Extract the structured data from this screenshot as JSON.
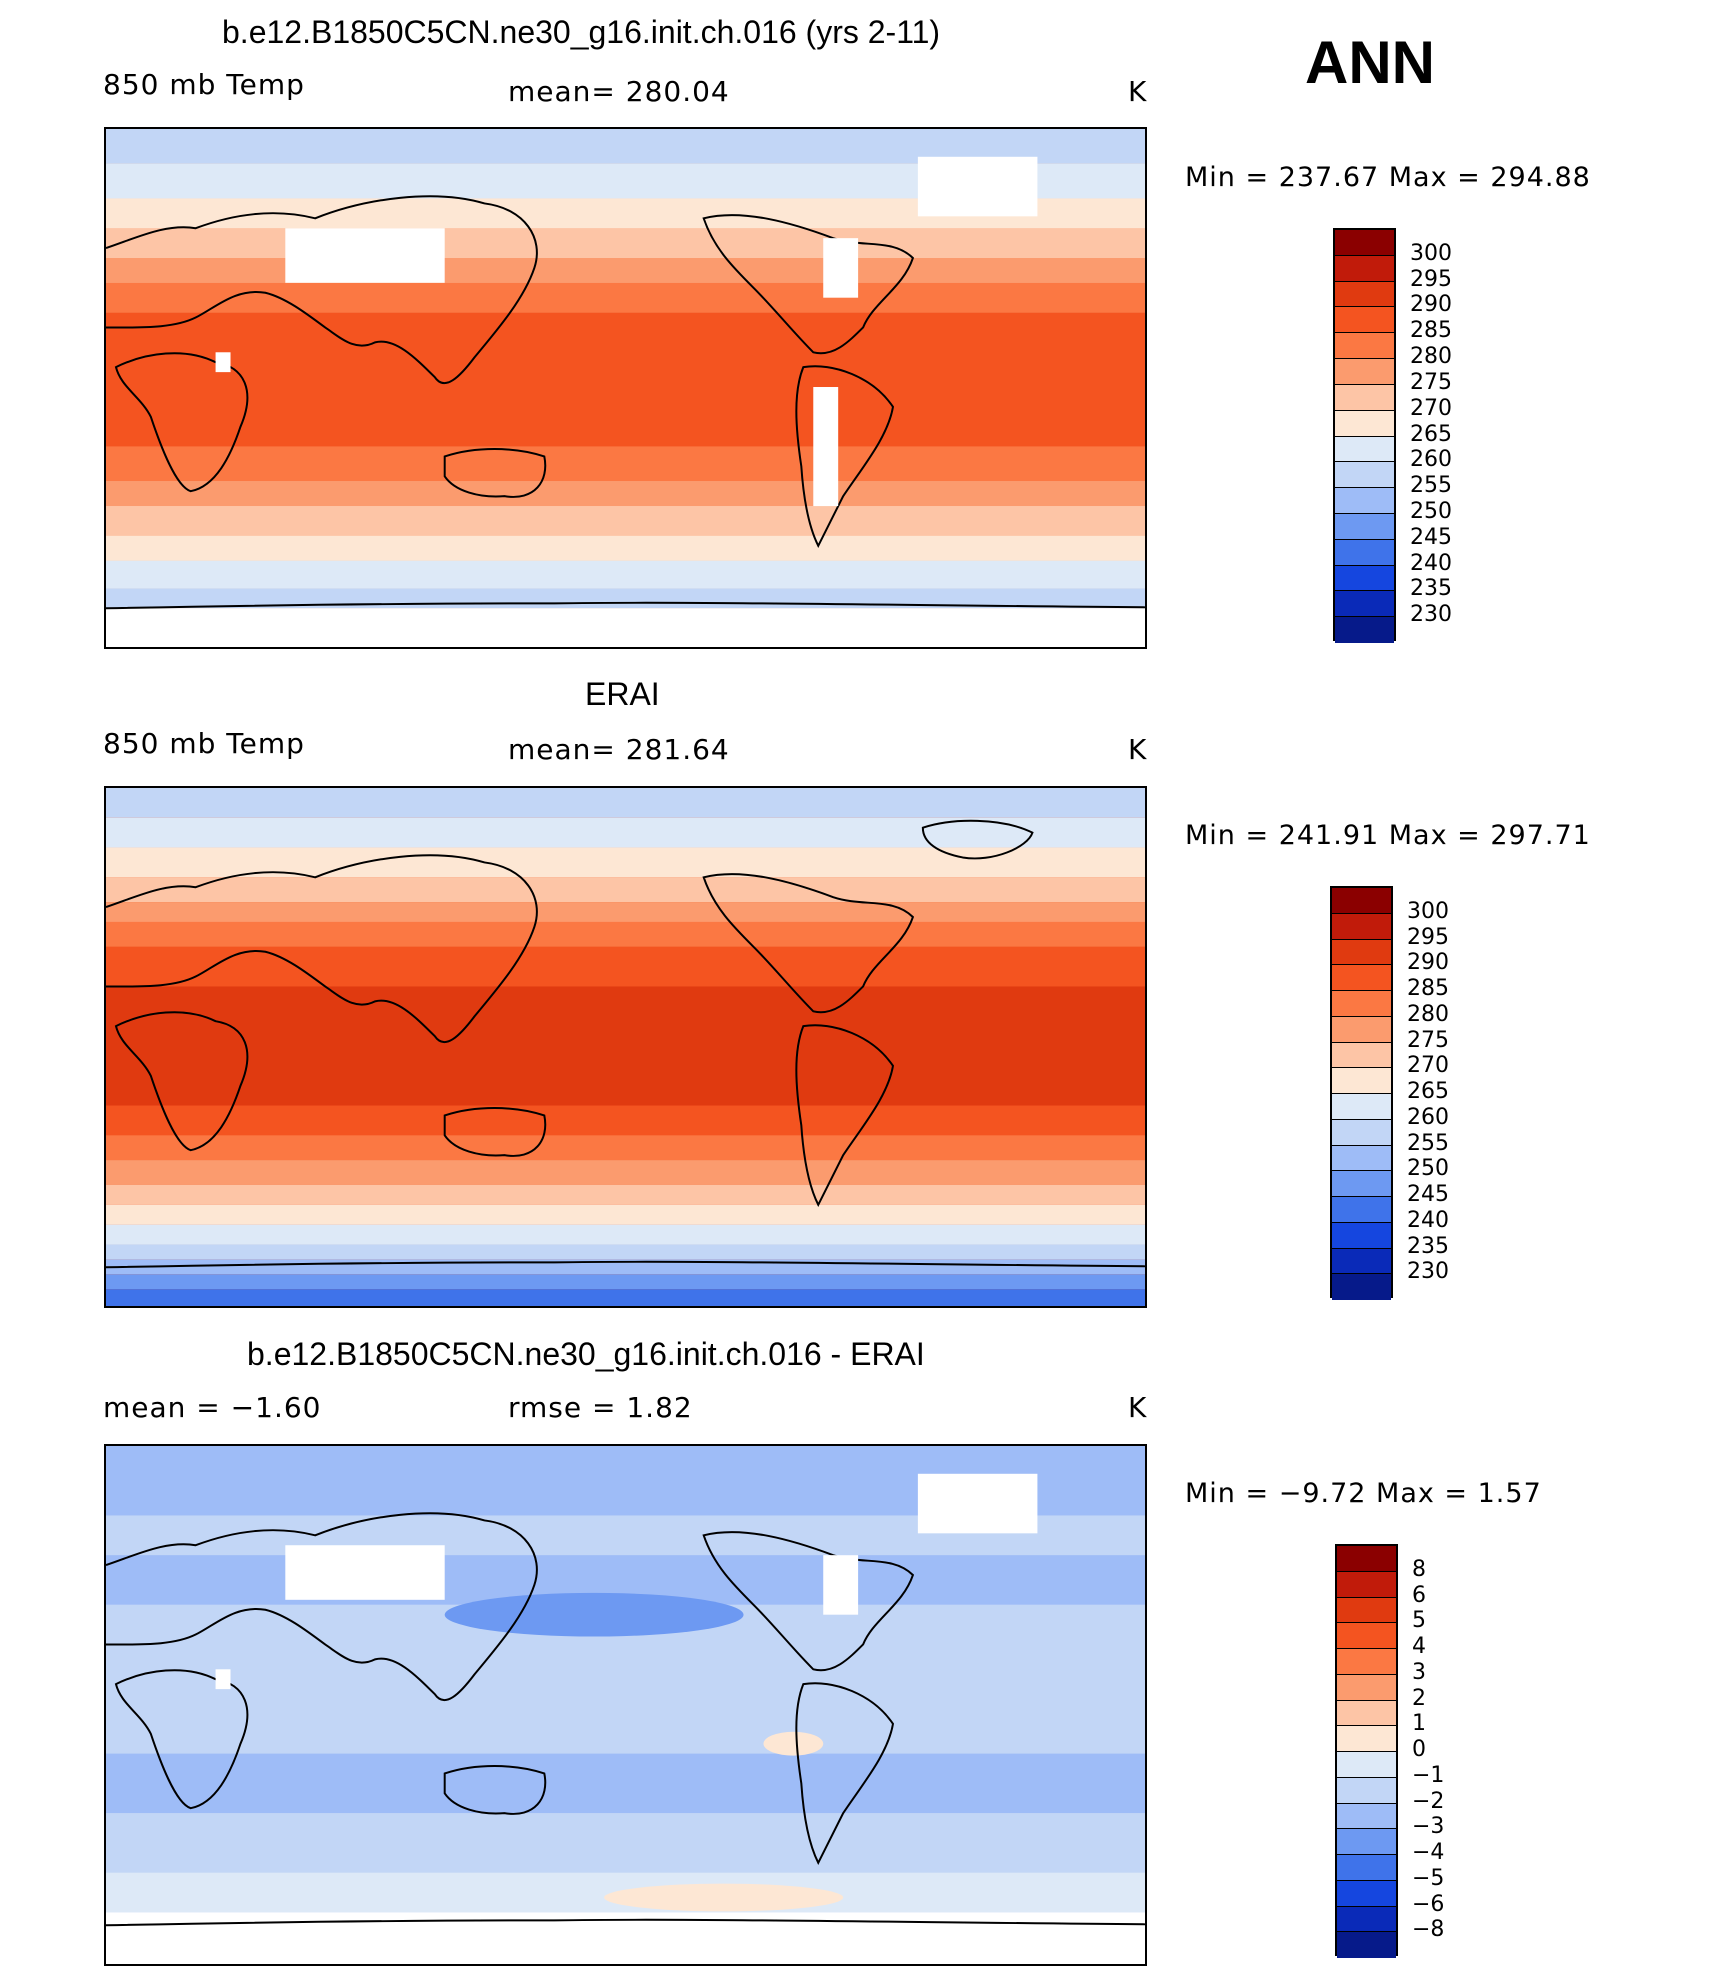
{
  "panels": [
    {
      "title": "b.e12.B1850C5CN.ne30_g16.init.ch.016 (yrs 2-11)",
      "left_label": "850 mb Temp",
      "center_label": "mean=  280.04",
      "unit": "K",
      "stats": "Min  =  237.67  Max  =  294.88",
      "levels": [
        "300",
        "295",
        "290",
        "285",
        "280",
        "275",
        "270",
        "265",
        "260",
        "255",
        "250",
        "245",
        "240",
        "235",
        "230"
      ],
      "colors": [
        "#8b0000",
        "#c11b0a",
        "#e03a10",
        "#f45420",
        "#fb7843",
        "#fb9b6e",
        "#fdc5a6",
        "#fde7d4",
        "#dde9f7",
        "#c2d6f6",
        "#9ebcf7",
        "#6d99f2",
        "#3f73ea",
        "#1546df",
        "#0a2ab8",
        "#061a8a"
      ],
      "map_style": "model"
    },
    {
      "title": "ERAI",
      "left_label": "850 mb Temp",
      "center_label": "mean=  281.64",
      "unit": "K",
      "stats": "Min  =  241.91  Max  =  297.71",
      "levels": [
        "300",
        "295",
        "290",
        "285",
        "280",
        "275",
        "270",
        "265",
        "260",
        "255",
        "250",
        "245",
        "240",
        "235",
        "230"
      ],
      "colors": [
        "#8b0000",
        "#c11b0a",
        "#e03a10",
        "#f45420",
        "#fb7843",
        "#fb9b6e",
        "#fdc5a6",
        "#fde7d4",
        "#dde9f7",
        "#c2d6f6",
        "#9ebcf7",
        "#6d99f2",
        "#3f73ea",
        "#1546df",
        "#0a2ab8",
        "#061a8a"
      ],
      "map_style": "obs"
    },
    {
      "title": "b.e12.B1850C5CN.ne30_g16.init.ch.016 - ERAI",
      "left_label": "mean =    −1.60",
      "center_label": "rmse =     1.82",
      "unit": "K",
      "stats": "Min  =    −9.72  Max  =     1.57",
      "levels": [
        "8",
        "6",
        "5",
        "4",
        "3",
        "2",
        "1",
        "0",
        "−1",
        "−2",
        "−3",
        "−4",
        "−5",
        "−6",
        "−8"
      ],
      "colors": [
        "#8b0000",
        "#c11b0a",
        "#e03a10",
        "#f45420",
        "#fb7843",
        "#fb9b6e",
        "#fdc5a6",
        "#fde7d4",
        "#dde9f7",
        "#c2d6f6",
        "#9ebcf7",
        "#6d99f2",
        "#3f73ea",
        "#1546df",
        "#0a2ab8",
        "#061a8a"
      ],
      "map_style": "diff"
    }
  ],
  "season": "ANN"
}
